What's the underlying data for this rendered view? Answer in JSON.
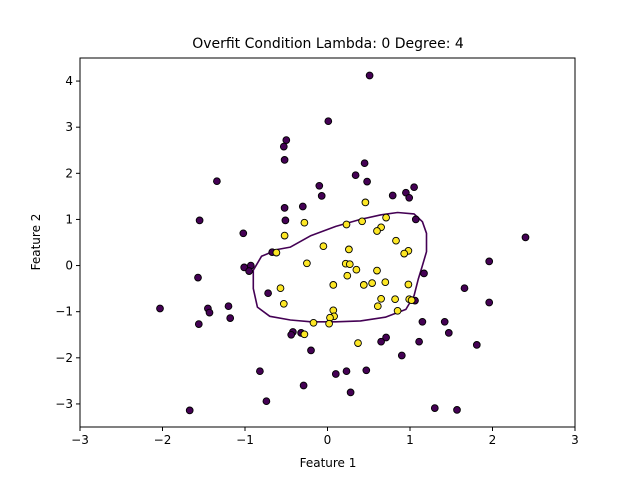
{
  "chart_data": {
    "type": "scatter",
    "title": "Overfit Condition  Lambda: 0 Degree: 4",
    "xlabel": "Feature 1",
    "ylabel": "Feature 2",
    "xlim": [
      -3,
      3
    ],
    "ylim": [
      -3.5,
      4.5
    ],
    "xticks": [
      -3,
      -2,
      -1,
      0,
      1,
      2,
      3
    ],
    "yticks": [
      -3,
      -2,
      -1,
      0,
      1,
      2,
      3,
      4
    ],
    "grid": false,
    "colors": {
      "class0": "#440154",
      "class1": "#fde725",
      "boundary": "#440154",
      "edge": "#000000"
    },
    "series": [
      {
        "class": 0,
        "points": [
          [
            0.51,
            4.12
          ],
          [
            0.01,
            3.13
          ],
          [
            -0.5,
            2.72
          ],
          [
            -0.53,
            2.58
          ],
          [
            -0.52,
            2.29
          ],
          [
            0.45,
            2.22
          ],
          [
            -1.34,
            1.83
          ],
          [
            0.34,
            1.96
          ],
          [
            0.48,
            1.82
          ],
          [
            -0.1,
            1.73
          ],
          [
            1.05,
            1.7
          ],
          [
            0.95,
            1.58
          ],
          [
            0.79,
            1.52
          ],
          [
            -0.07,
            1.51
          ],
          [
            0.99,
            1.47
          ],
          [
            -0.3,
            1.28
          ],
          [
            -0.52,
            1.25
          ],
          [
            -1.55,
            0.98
          ],
          [
            -0.51,
            0.98
          ],
          [
            1.07,
            1.0
          ],
          [
            -1.02,
            0.7
          ],
          [
            2.4,
            0.61
          ],
          [
            -0.67,
            0.29
          ],
          [
            1.96,
            0.09
          ],
          [
            -0.93,
            0.0
          ],
          [
            -1.01,
            -0.04
          ],
          [
            -0.95,
            -0.12
          ],
          [
            1.17,
            -0.17
          ],
          [
            -1.57,
            -0.26
          ],
          [
            1.66,
            -0.49
          ],
          [
            -0.72,
            -0.6
          ],
          [
            1.06,
            -0.76
          ],
          [
            -1.45,
            -0.93
          ],
          [
            -1.2,
            -0.88
          ],
          [
            -2.03,
            -0.93
          ],
          [
            -1.43,
            -1.02
          ],
          [
            1.96,
            -0.8
          ],
          [
            -1.18,
            -1.14
          ],
          [
            -1.56,
            -1.27
          ],
          [
            1.15,
            -1.22
          ],
          [
            1.42,
            -1.22
          ],
          [
            -0.42,
            -1.44
          ],
          [
            -0.32,
            -1.46
          ],
          [
            -0.44,
            -1.5
          ],
          [
            0.71,
            -1.56
          ],
          [
            1.47,
            -1.46
          ],
          [
            0.65,
            -1.65
          ],
          [
            1.11,
            -1.65
          ],
          [
            -0.2,
            -1.84
          ],
          [
            1.81,
            -1.72
          ],
          [
            0.9,
            -1.95
          ],
          [
            -0.82,
            -2.29
          ],
          [
            0.23,
            -2.29
          ],
          [
            0.47,
            -2.27
          ],
          [
            0.1,
            -2.35
          ],
          [
            -0.29,
            -2.6
          ],
          [
            0.28,
            -2.75
          ],
          [
            -0.74,
            -2.94
          ],
          [
            1.3,
            -3.09
          ],
          [
            1.57,
            -3.13
          ],
          [
            -1.67,
            -3.14
          ]
        ]
      },
      {
        "class": 1,
        "points": [
          [
            0.46,
            1.37
          ],
          [
            0.71,
            1.04
          ],
          [
            0.42,
            0.96
          ],
          [
            0.23,
            0.89
          ],
          [
            -0.28,
            0.93
          ],
          [
            0.65,
            0.83
          ],
          [
            0.6,
            0.75
          ],
          [
            -0.52,
            0.65
          ],
          [
            0.83,
            0.54
          ],
          [
            -0.05,
            0.42
          ],
          [
            0.26,
            0.35
          ],
          [
            -0.62,
            0.28
          ],
          [
            0.98,
            0.32
          ],
          [
            0.93,
            0.26
          ],
          [
            0.22,
            0.04
          ],
          [
            0.27,
            0.03
          ],
          [
            -0.25,
            0.05
          ],
          [
            0.35,
            -0.09
          ],
          [
            0.6,
            -0.11
          ],
          [
            0.24,
            -0.22
          ],
          [
            0.7,
            -0.36
          ],
          [
            0.54,
            -0.38
          ],
          [
            0.44,
            -0.42
          ],
          [
            0.07,
            -0.42
          ],
          [
            -0.57,
            -0.49
          ],
          [
            0.98,
            -0.41
          ],
          [
            0.65,
            -0.72
          ],
          [
            0.82,
            -0.73
          ],
          [
            0.99,
            -0.73
          ],
          [
            1.02,
            -0.75
          ],
          [
            -0.53,
            -0.83
          ],
          [
            0.61,
            -0.88
          ],
          [
            0.85,
            -0.98
          ],
          [
            0.07,
            -0.97
          ],
          [
            0.08,
            -1.1
          ],
          [
            0.03,
            -1.13
          ],
          [
            -0.17,
            -1.24
          ],
          [
            0.02,
            -1.26
          ],
          [
            -0.28,
            -1.49
          ],
          [
            0.37,
            -1.68
          ]
        ]
      }
    ],
    "decision_boundary": [
      [
        -0.45,
        0.4
      ],
      [
        -0.2,
        0.65
      ],
      [
        0.1,
        0.85
      ],
      [
        0.4,
        1.0
      ],
      [
        0.65,
        1.1
      ],
      [
        0.85,
        1.15
      ],
      [
        1.05,
        1.12
      ],
      [
        1.15,
        0.95
      ],
      [
        1.2,
        0.7
      ],
      [
        1.2,
        0.3
      ],
      [
        1.15,
        0.0
      ],
      [
        1.1,
        -0.3
      ],
      [
        1.05,
        -0.65
      ],
      [
        0.95,
        -0.95
      ],
      [
        0.7,
        -1.12
      ],
      [
        0.4,
        -1.2
      ],
      [
        0.1,
        -1.22
      ],
      [
        -0.2,
        -1.22
      ],
      [
        -0.45,
        -1.18
      ],
      [
        -0.7,
        -1.1
      ],
      [
        -0.85,
        -0.9
      ],
      [
        -0.9,
        -0.5
      ],
      [
        -0.9,
        -0.1
      ],
      [
        -0.8,
        0.2
      ],
      [
        -0.6,
        0.35
      ],
      [
        -0.45,
        0.4
      ]
    ]
  }
}
